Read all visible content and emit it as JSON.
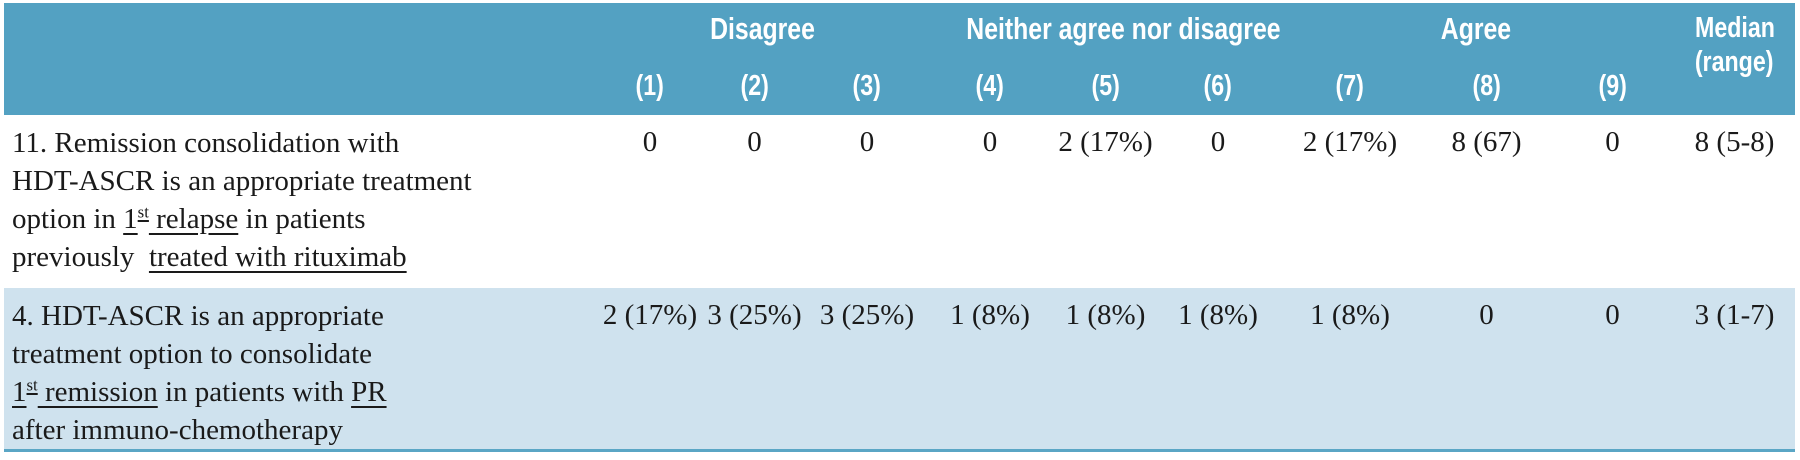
{
  "colors": {
    "header_bg": "#53a1c2",
    "header_text": "#ffffff",
    "shaded_row_bg": "#cfe2ee",
    "bottom_border": "#5aa6c5",
    "body_text": "#1a1a1a"
  },
  "table": {
    "header": {
      "groups": [
        {
          "label": "Disagree",
          "scales": [
            "(1)",
            "(2)",
            "(3)"
          ]
        },
        {
          "label": "Neither agree nor disagree",
          "scales": [
            "(4)",
            "(5)",
            "(6)"
          ]
        },
        {
          "label": "Agree",
          "scales": [
            "(7)",
            "(8)",
            "(9)"
          ]
        }
      ],
      "median": {
        "line1": "Median",
        "line2": "(range)"
      }
    },
    "rows": [
      {
        "shaded": false,
        "question_lines": [
          [
            {
              "t": "11. Remission consolidation with"
            }
          ],
          [
            {
              "t": "HDT-ASCR is an appropriate treatment"
            }
          ],
          [
            {
              "t": "option in "
            },
            {
              "t": "1",
              "u": true
            },
            {
              "t": "st",
              "u": true,
              "sup": true
            },
            {
              "t": " relapse",
              "u": true
            },
            {
              "t": " in patients"
            }
          ],
          [
            {
              "t": "previously  "
            },
            {
              "t": "treated with rituximab",
              "u": true
            }
          ]
        ],
        "values": [
          "0",
          "0",
          "0",
          "0",
          "2 (17%)",
          "0",
          "2 (17%)",
          "8 (67)",
          "0"
        ],
        "median": "8 (5-8)"
      },
      {
        "shaded": true,
        "question_lines": [
          [
            {
              "t": "4. HDT-ASCR is an appropriate"
            }
          ],
          [
            {
              "t": "treatment option to consolidate"
            }
          ],
          [
            {
              "t": "1",
              "u": true
            },
            {
              "t": "st",
              "u": true,
              "sup": true
            },
            {
              "t": " remission",
              "u": true
            },
            {
              "t": " in patients with "
            },
            {
              "t": "PR",
              "u": true
            }
          ],
          [
            {
              "t": "after immuno-chemotherapy"
            }
          ]
        ],
        "values": [
          "2 (17%)",
          "3 (25%)",
          "3 (25%)",
          "1 (8%)",
          "1 (8%)",
          "1 (8%)",
          "1 (8%)",
          "0",
          "0"
        ],
        "median": "3 (1-7)"
      }
    ]
  }
}
